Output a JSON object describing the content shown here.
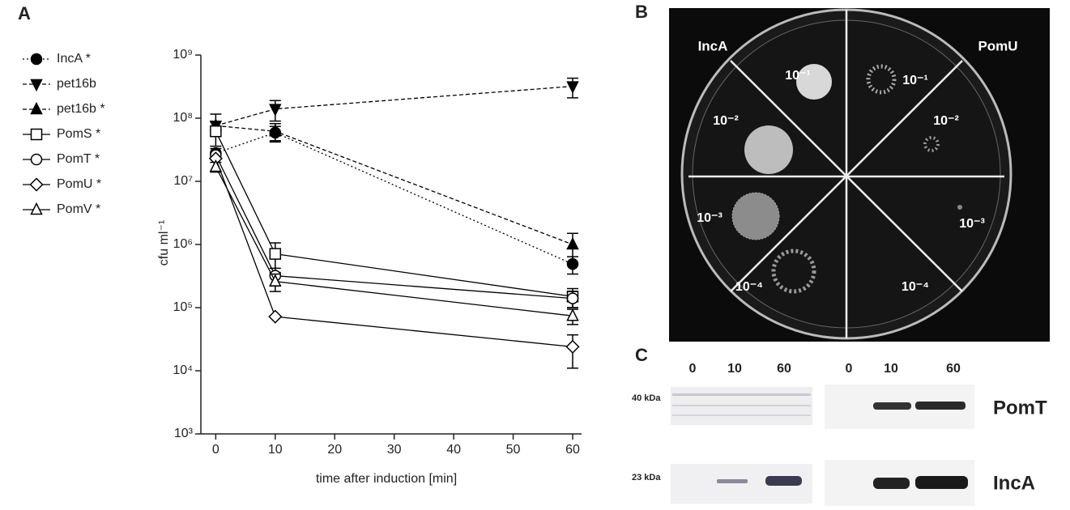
{
  "chart_data": {
    "type": "line",
    "panel_label": "A",
    "x_label": "time after induction [min]",
    "y_label": "cfu ml⁻¹",
    "x": [
      0,
      10,
      60
    ],
    "xlim": [
      -2.5,
      61.5
    ],
    "xticks": [
      0,
      10,
      20,
      30,
      40,
      50,
      60
    ],
    "ylim": [
      1000,
      1000000000
    ],
    "log_y": true,
    "yticks": [
      {
        "value": 1000,
        "label": "10³"
      },
      {
        "value": 10000,
        "label": "10⁴"
      },
      {
        "value": 100000,
        "label": "10⁵"
      },
      {
        "value": 1000000,
        "label": "10⁶"
      },
      {
        "value": 10000000,
        "label": "10⁷"
      },
      {
        "value": 100000000,
        "label": "10⁸"
      },
      {
        "value": 1000000000,
        "label": "10⁹"
      }
    ],
    "series": [
      {
        "name": "IncA *",
        "color": "#000000",
        "marker": "circle",
        "filled": true,
        "dash": "dotted",
        "values": [
          28000000,
          59000000,
          490000
        ],
        "errors": [
          5000000,
          15000000,
          150000
        ]
      },
      {
        "name": "pet16b",
        "color": "#000000",
        "marker": "triangle-down",
        "filled": true,
        "dash": "dashed",
        "values": [
          76000000,
          140000000,
          320000000
        ],
        "errors": [
          null,
          50000000,
          110000000
        ]
      },
      {
        "name": "pet16b *",
        "color": "#000000",
        "marker": "triangle-up",
        "filled": true,
        "dash": "dashed",
        "values": [
          76000000,
          62000000,
          1000000
        ],
        "errors": [
          40000000,
          20000000,
          500000
        ]
      },
      {
        "name": "PomS *",
        "color": "#000000",
        "marker": "square",
        "filled": false,
        "dash": "solid",
        "values": [
          62000000,
          710000,
          150000
        ],
        "errors": [
          10000000,
          350000,
          50000
        ]
      },
      {
        "name": "PomT *",
        "color": "#000000",
        "marker": "circle",
        "filled": false,
        "dash": "solid",
        "values": [
          26000000,
          320000,
          140000
        ],
        "errors": [
          null,
          100000,
          40000
        ]
      },
      {
        "name": "PomU *",
        "color": "#000000",
        "marker": "diamond",
        "filled": false,
        "dash": "solid",
        "values": [
          23000000,
          72000,
          24000
        ],
        "errors": [
          null,
          null,
          13000
        ]
      },
      {
        "name": "PomV *",
        "color": "#000000",
        "marker": "triangle-up",
        "filled": false,
        "dash": "solid",
        "values": [
          17000000,
          260000,
          74000
        ],
        "errors": [
          3000000,
          80000,
          20000
        ]
      }
    ]
  },
  "photo": {
    "panel_label": "B",
    "left_label": "IncA",
    "right_label": "PomU",
    "left_dilutions": [
      "10⁻¹",
      "10⁻²",
      "10⁻³",
      "10⁻⁴"
    ],
    "right_dilutions": [
      "10⁻¹",
      "10⁻²",
      "10⁻³",
      "10⁻⁴"
    ]
  },
  "blot": {
    "panel_label": "C",
    "lanes": [
      "0",
      "10",
      "60",
      "0",
      "10",
      "60"
    ],
    "markers": [
      "40 kDa",
      "23 kDa"
    ],
    "proteins": [
      "PomT",
      "IncA"
    ]
  }
}
